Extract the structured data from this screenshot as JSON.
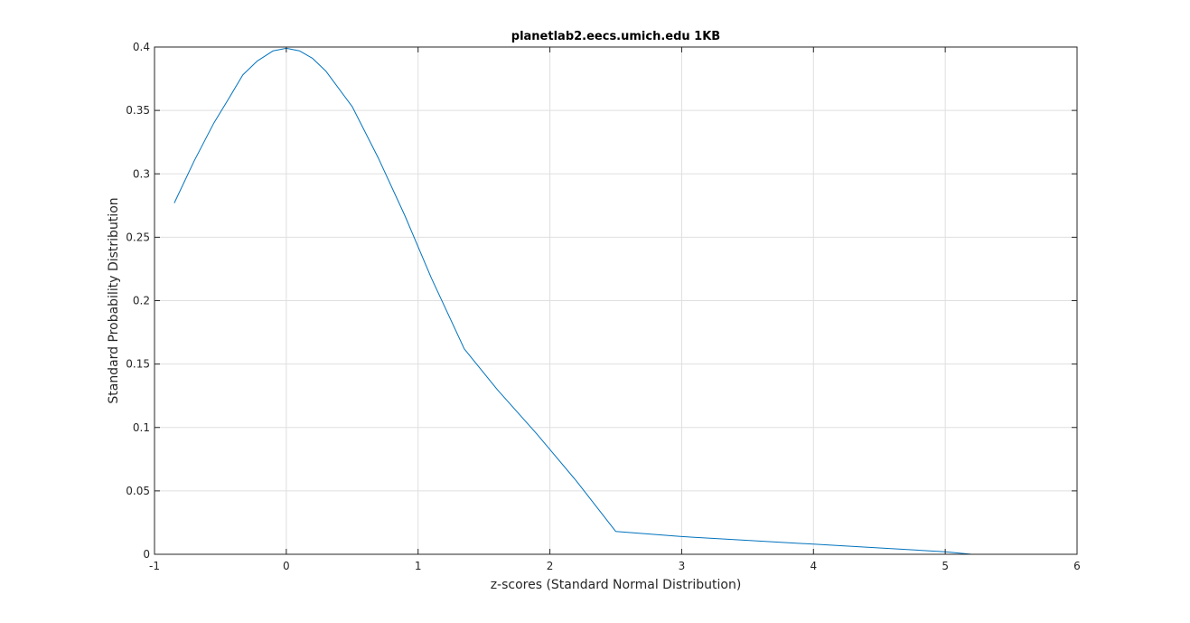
{
  "chart_data": {
    "type": "line",
    "title": "planetlab2.eecs.umich.edu 1KB",
    "xlabel": "z-scores (Standard Normal Distribution)",
    "ylabel": "Standard Probability Distribution",
    "xlim": [
      -1,
      6
    ],
    "ylim": [
      0,
      0.4
    ],
    "xticks": [
      -1,
      0,
      1,
      2,
      3,
      4,
      5,
      6
    ],
    "xtick_labels": [
      "-1",
      "0",
      "1",
      "2",
      "3",
      "4",
      "5",
      "6"
    ],
    "yticks": [
      0,
      0.05,
      0.1,
      0.15,
      0.2,
      0.25,
      0.3,
      0.35,
      0.4
    ],
    "ytick_labels": [
      "0",
      "0.05",
      "0.1",
      "0.15",
      "0.2",
      "0.25",
      "0.3",
      "0.35",
      "0.4"
    ],
    "grid": true,
    "legend": "none",
    "series": [
      {
        "color": "#0072bd",
        "x": [
          -0.85,
          -0.7,
          -0.55,
          -0.45,
          -0.33,
          -0.22,
          -0.1,
          0,
          0.1,
          0.2,
          0.3,
          0.5,
          0.7,
          0.9,
          1.1,
          1.35,
          1.6,
          1.9,
          2.2,
          2.5,
          3.0,
          3.5,
          4.0,
          4.5,
          5.0,
          5.2
        ],
        "y": [
          0.277,
          0.31,
          0.34,
          0.357,
          0.378,
          0.389,
          0.397,
          0.399,
          0.397,
          0.391,
          0.381,
          0.353,
          0.312,
          0.267,
          0.218,
          0.162,
          0.13,
          0.095,
          0.058,
          0.018,
          0.014,
          0.011,
          0.008,
          0.005,
          0.002,
          0.0
        ]
      }
    ]
  }
}
